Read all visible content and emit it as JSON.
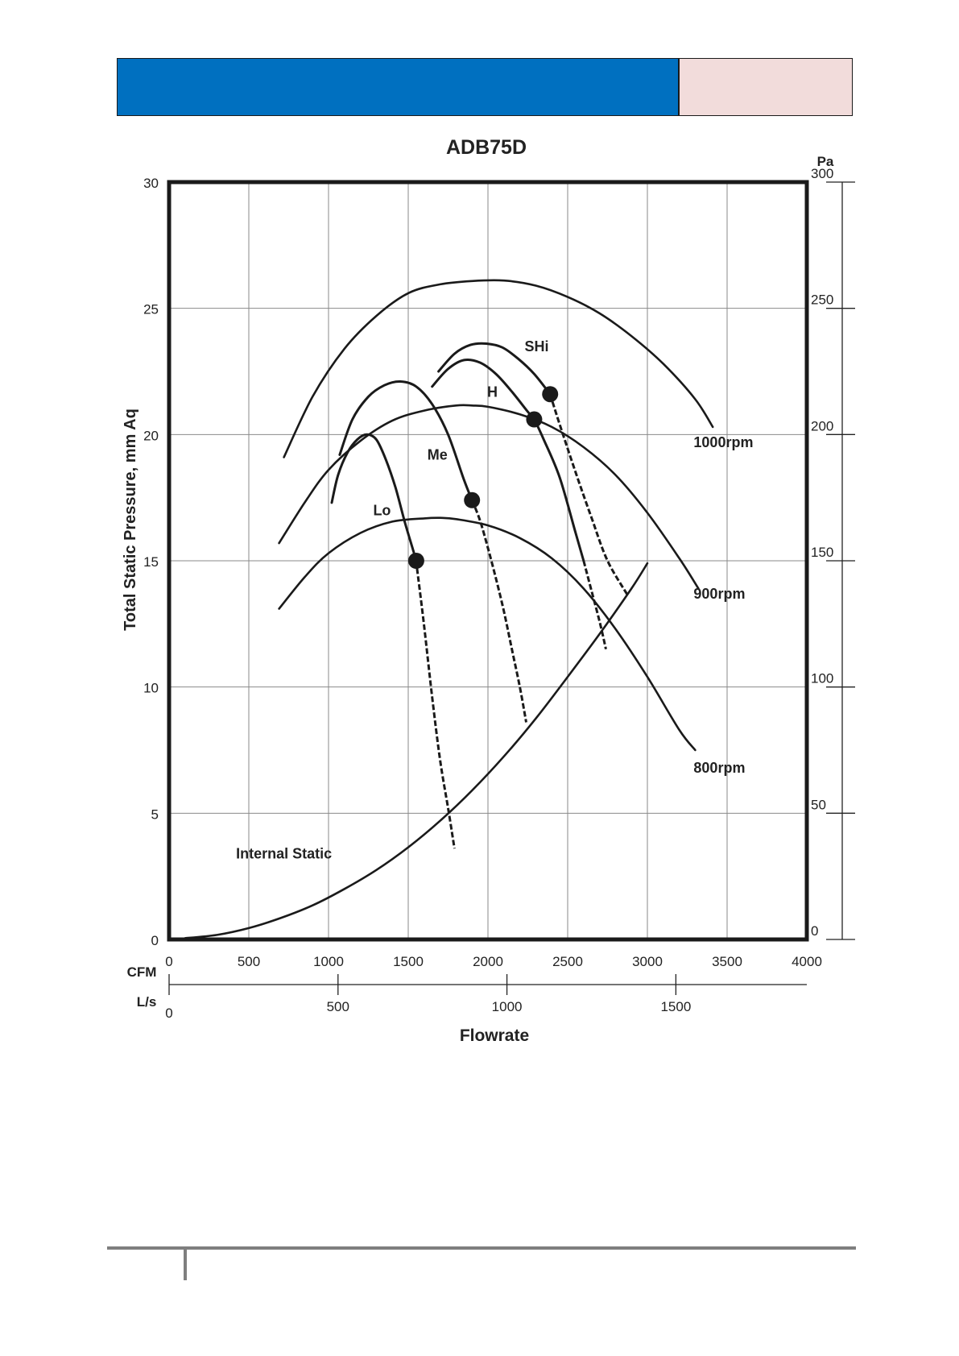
{
  "header": {
    "bar_color": "#0070c0",
    "box_color": "#f2dcdb"
  },
  "chart_data": {
    "type": "line",
    "title": "ADB75D",
    "ylabel": "Total Static Pressure, mm Aq",
    "y2label": "Pa",
    "xlabel": "Flowrate",
    "x_axis_labels": {
      "primary": "CFM",
      "secondary": "L/s"
    },
    "xlim": [
      0,
      4000
    ],
    "ylim": [
      0,
      30
    ],
    "y2lim": [
      0,
      300
    ],
    "grid": true,
    "x_ticks": [
      0,
      500,
      1000,
      1500,
      2000,
      2500,
      3000,
      3500,
      4000
    ],
    "y_ticks": [
      0,
      5,
      10,
      15,
      20,
      25,
      30
    ],
    "y2_ticks": [
      0,
      50,
      100,
      150,
      200,
      250,
      300
    ],
    "ls_ticks": [
      0,
      500,
      1000,
      1500
    ],
    "lps_per_cfm": 0.4719,
    "series": [
      {
        "name": "1000rpm",
        "style": "solid",
        "label_at": [
          3290,
          19.5
        ],
        "points": [
          [
            720,
            19.1
          ],
          [
            900,
            21.5
          ],
          [
            1100,
            23.4
          ],
          [
            1300,
            24.7
          ],
          [
            1500,
            25.6
          ],
          [
            1700,
            25.95
          ],
          [
            1900,
            26.08
          ],
          [
            2100,
            26.1
          ],
          [
            2300,
            25.9
          ],
          [
            2500,
            25.45
          ],
          [
            2700,
            24.8
          ],
          [
            2900,
            23.9
          ],
          [
            3100,
            22.8
          ],
          [
            3300,
            21.4
          ],
          [
            3410,
            20.3
          ]
        ]
      },
      {
        "name": "900rpm",
        "style": "solid",
        "label_at": [
          3290,
          13.5
        ],
        "points": [
          [
            690,
            15.7
          ],
          [
            850,
            17.3
          ],
          [
            1000,
            18.6
          ],
          [
            1200,
            19.75
          ],
          [
            1400,
            20.55
          ],
          [
            1600,
            20.95
          ],
          [
            1800,
            21.15
          ],
          [
            1900,
            21.15
          ],
          [
            2000,
            21.1
          ],
          [
            2200,
            20.8
          ],
          [
            2400,
            20.3
          ],
          [
            2600,
            19.5
          ],
          [
            2800,
            18.4
          ],
          [
            3000,
            16.9
          ],
          [
            3200,
            15.1
          ],
          [
            3320,
            13.9
          ]
        ]
      },
      {
        "name": "800rpm",
        "style": "solid",
        "label_at": [
          3290,
          6.6
        ],
        "points": [
          [
            690,
            13.1
          ],
          [
            850,
            14.35
          ],
          [
            1000,
            15.3
          ],
          [
            1200,
            16.1
          ],
          [
            1400,
            16.55
          ],
          [
            1600,
            16.68
          ],
          [
            1700,
            16.7
          ],
          [
            1800,
            16.65
          ],
          [
            2000,
            16.4
          ],
          [
            2200,
            15.9
          ],
          [
            2400,
            15.1
          ],
          [
            2600,
            13.9
          ],
          [
            2800,
            12.3
          ],
          [
            3000,
            10.4
          ],
          [
            3200,
            8.3
          ],
          [
            3300,
            7.5
          ]
        ]
      },
      {
        "name": "Internal Static",
        "style": "solid",
        "label_at": [
          420,
          3.2
        ],
        "points": [
          [
            100,
            0.05
          ],
          [
            300,
            0.18
          ],
          [
            500,
            0.45
          ],
          [
            700,
            0.85
          ],
          [
            900,
            1.35
          ],
          [
            1100,
            2.0
          ],
          [
            1300,
            2.75
          ],
          [
            1500,
            3.65
          ],
          [
            1700,
            4.7
          ],
          [
            1900,
            5.9
          ],
          [
            2100,
            7.25
          ],
          [
            2300,
            8.75
          ],
          [
            2500,
            10.4
          ],
          [
            2700,
            12.1
          ],
          [
            2900,
            13.9
          ],
          [
            3000,
            14.9
          ]
        ]
      },
      {
        "name": "Lo",
        "style": "mixed",
        "label_at": [
          1280,
          16.8
        ],
        "dot": [
          1550,
          15.0
        ],
        "dash_from": [
          1555,
          14.7
        ],
        "solid": [
          [
            1020,
            17.3
          ],
          [
            1060,
            18.4
          ],
          [
            1120,
            19.3
          ],
          [
            1180,
            19.8
          ],
          [
            1240,
            20.0
          ],
          [
            1300,
            19.8
          ],
          [
            1360,
            19.0
          ],
          [
            1420,
            17.9
          ],
          [
            1480,
            16.5
          ],
          [
            1550,
            15.0
          ],
          [
            1555,
            14.7
          ]
        ],
        "dashed": [
          [
            1555,
            14.7
          ],
          [
            1600,
            12.4
          ],
          [
            1650,
            9.6
          ],
          [
            1700,
            7.1
          ],
          [
            1750,
            5.2
          ],
          [
            1790,
            3.6
          ]
        ]
      },
      {
        "name": "Me",
        "style": "mixed",
        "label_at": [
          1620,
          19.0
        ],
        "dot": [
          1900,
          17.4
        ],
        "dash_from": [
          1900,
          17.4
        ],
        "solid": [
          [
            1070,
            19.2
          ],
          [
            1150,
            20.6
          ],
          [
            1250,
            21.5
          ],
          [
            1350,
            21.95
          ],
          [
            1450,
            22.1
          ],
          [
            1550,
            21.9
          ],
          [
            1650,
            21.2
          ],
          [
            1750,
            20.0
          ],
          [
            1850,
            18.2
          ],
          [
            1900,
            17.4
          ]
        ],
        "dashed": [
          [
            1900,
            17.4
          ],
          [
            1950,
            16.6
          ],
          [
            2000,
            15.5
          ],
          [
            2050,
            14.3
          ],
          [
            2100,
            13.0
          ],
          [
            2150,
            11.5
          ],
          [
            2200,
            10.0
          ],
          [
            2240,
            8.6
          ]
        ]
      },
      {
        "name": "H",
        "style": "mixed",
        "label_at": [
          1995,
          21.5
        ],
        "dot": [
          2290,
          20.6
        ],
        "dash_from": [
          2600,
          15.0
        ],
        "solid": [
          [
            1650,
            21.9
          ],
          [
            1750,
            22.6
          ],
          [
            1850,
            22.95
          ],
          [
            1950,
            22.85
          ],
          [
            2050,
            22.4
          ],
          [
            2150,
            21.7
          ],
          [
            2250,
            20.9
          ],
          [
            2290,
            20.6
          ],
          [
            2350,
            19.8
          ],
          [
            2450,
            18.3
          ],
          [
            2550,
            16.1
          ],
          [
            2600,
            15.0
          ]
        ],
        "dashed": [
          [
            2600,
            15.0
          ],
          [
            2650,
            13.8
          ],
          [
            2700,
            12.6
          ],
          [
            2740,
            11.5
          ]
        ]
      },
      {
        "name": "SHi",
        "style": "mixed",
        "label_at": [
          2230,
          23.3
        ],
        "dot": [
          2390,
          21.6
        ],
        "dash_from": [
          2390,
          21.6
        ],
        "solid": [
          [
            1690,
            22.5
          ],
          [
            1790,
            23.2
          ],
          [
            1890,
            23.55
          ],
          [
            1990,
            23.6
          ],
          [
            2090,
            23.45
          ],
          [
            2190,
            23.0
          ],
          [
            2290,
            22.4
          ],
          [
            2390,
            21.6
          ]
        ],
        "dashed": [
          [
            2390,
            21.6
          ],
          [
            2450,
            20.4
          ],
          [
            2550,
            18.5
          ],
          [
            2650,
            16.7
          ],
          [
            2750,
            15.0
          ],
          [
            2880,
            13.6
          ]
        ]
      }
    ]
  }
}
